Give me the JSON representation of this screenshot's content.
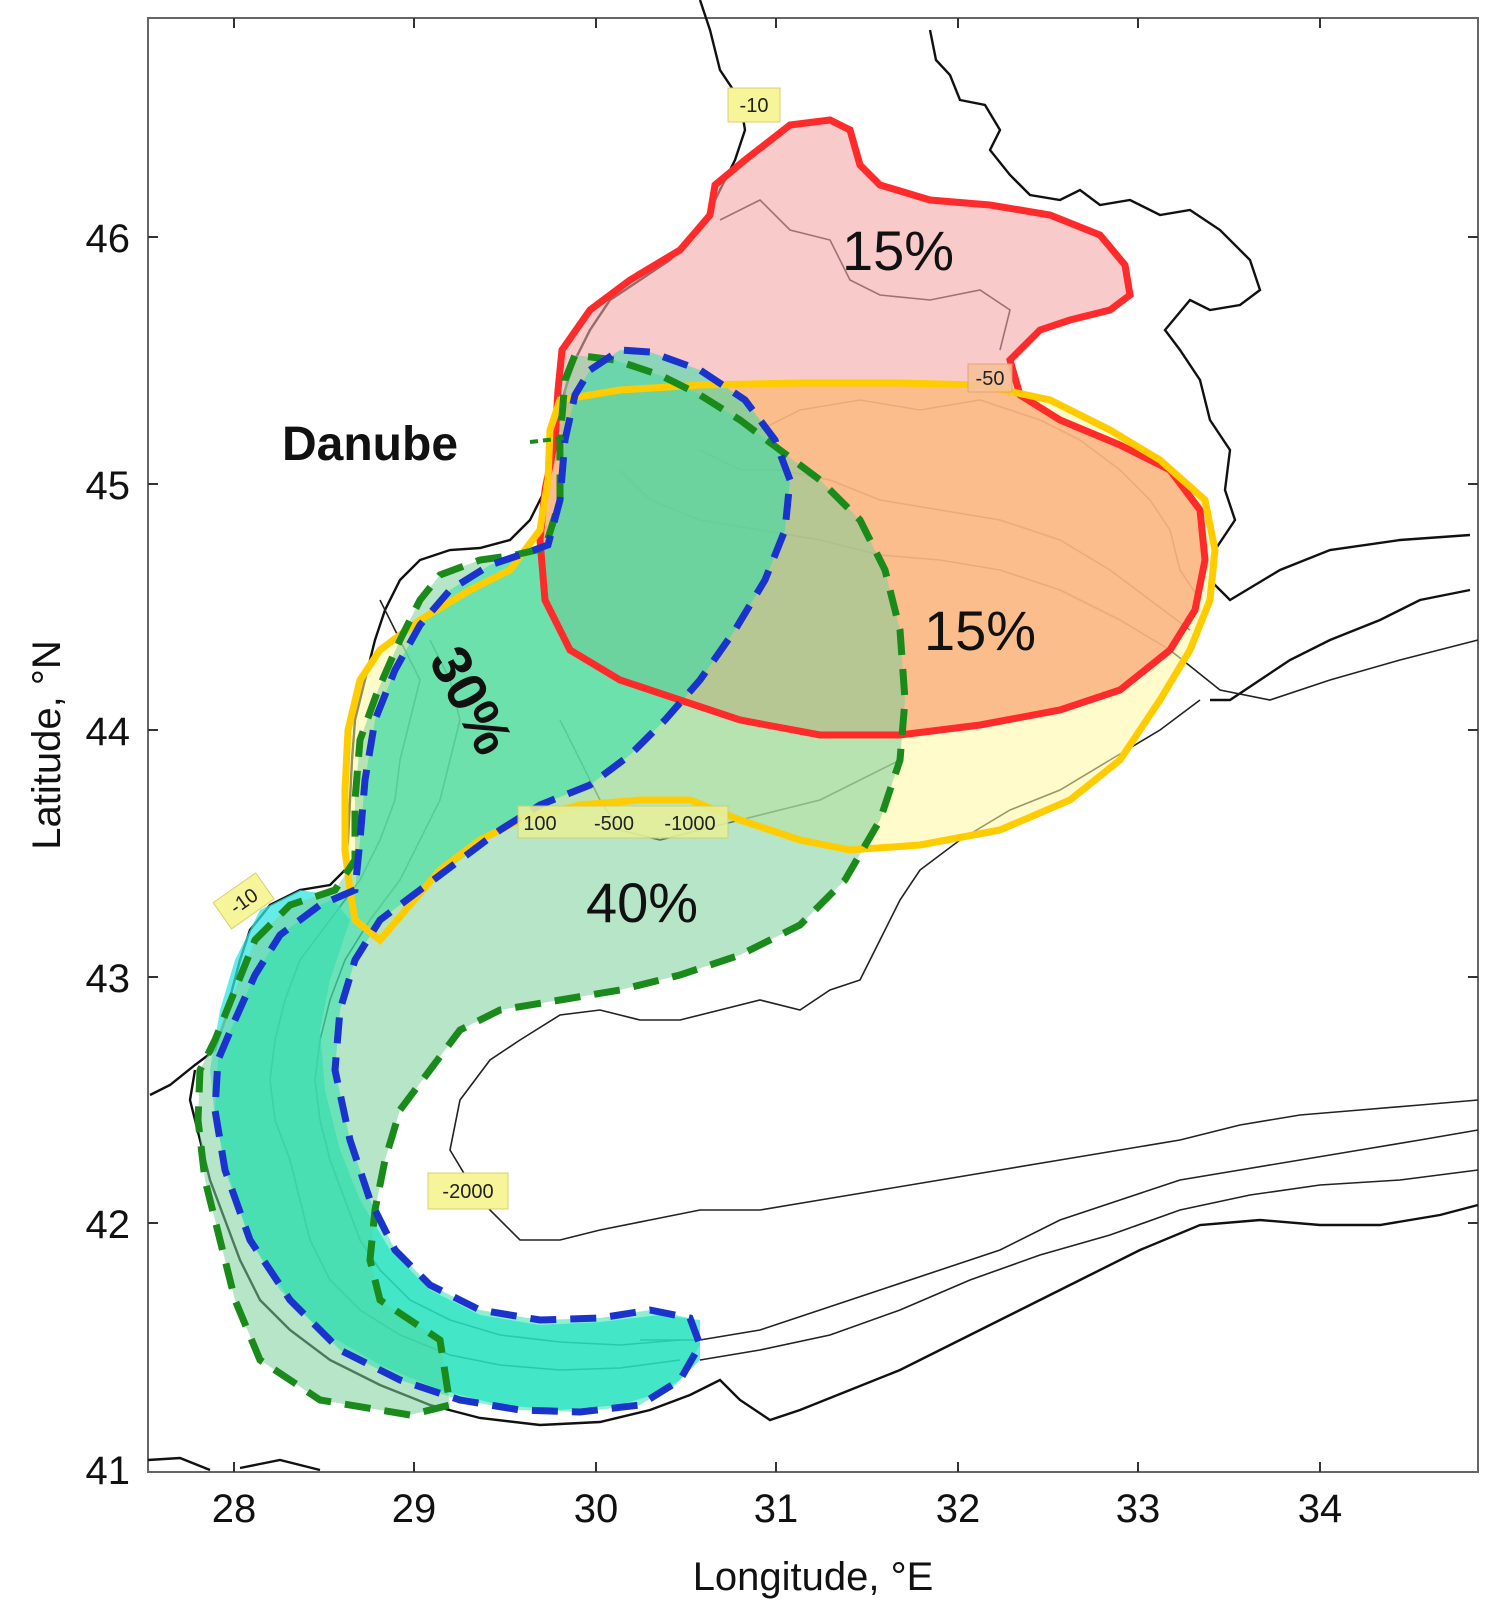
{
  "axes": {
    "xlabel": "Longitude, °E",
    "ylabel": "Latitude, °N",
    "x_ticks": [
      "28",
      "29",
      "30",
      "31",
      "32",
      "33",
      "34"
    ],
    "y_ticks": [
      "46",
      "45",
      "44",
      "43",
      "42",
      "41"
    ]
  },
  "river_label": "Danube",
  "zones": {
    "red_upper": {
      "label": "15%",
      "color": "#ff2a2a",
      "fill": "#f4a6a6"
    },
    "orange": {
      "label": "15%",
      "color": "#ff4500",
      "fill": "#ffb56a"
    },
    "yellow": {
      "color": "#ffcc00",
      "fill": "#fff7a0"
    },
    "green_dashed": {
      "label": "40%",
      "color": "#1a8a1a",
      "fill": "#7ccf9a"
    },
    "blue_dashed": {
      "label": "30%",
      "color": "#1a33cc",
      "fill": "#22e0a8"
    },
    "cyan_band": {
      "fill": "#33e6e0"
    }
  },
  "contour_tags": {
    "top": "-10",
    "left": "-10",
    "mid_100": "100",
    "mid_500": "-500",
    "mid_1000": "-1000",
    "deep": "-2000",
    "ne_50": "-50"
  }
}
